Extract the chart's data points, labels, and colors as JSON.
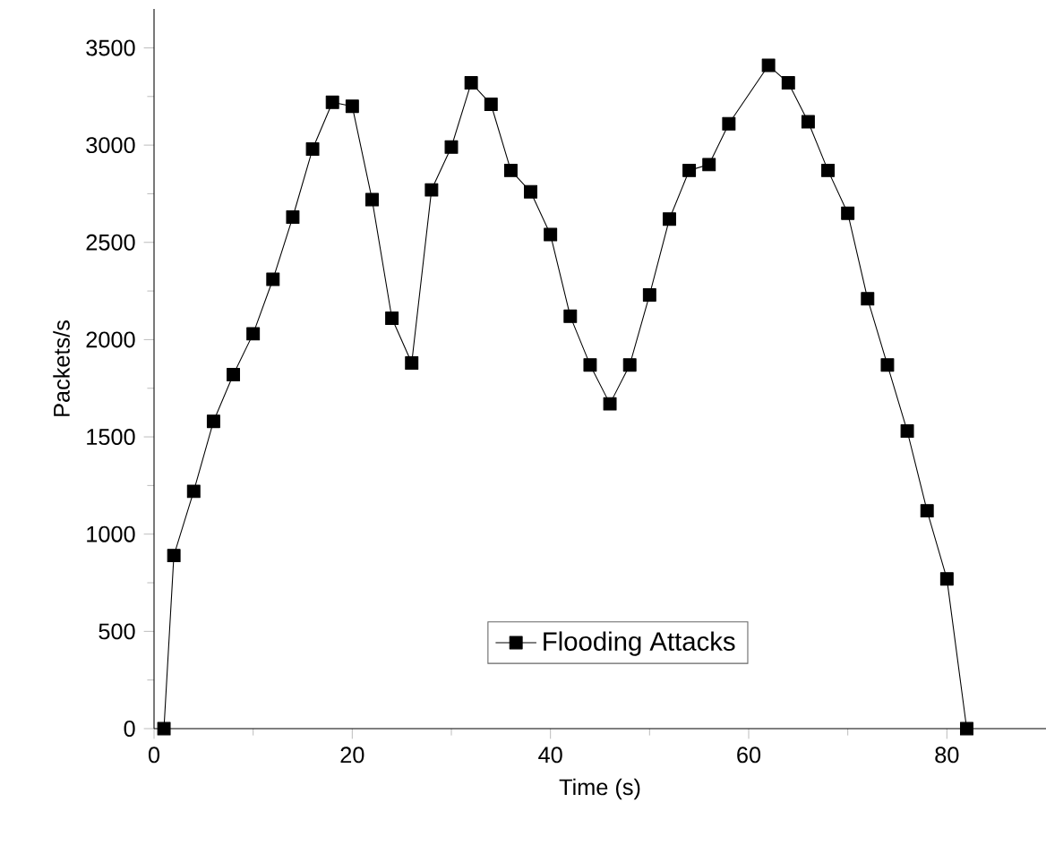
{
  "chart_data": {
    "type": "line",
    "xlabel": "Time (s)",
    "ylabel": "Packets/s",
    "x": [
      1,
      2,
      4,
      6,
      8,
      10,
      12,
      14,
      16,
      18,
      20,
      22,
      24,
      26,
      28,
      30,
      32,
      34,
      36,
      38,
      40,
      42,
      44,
      46,
      48,
      50,
      52,
      54,
      56,
      58,
      62,
      64,
      66,
      68,
      70,
      72,
      74,
      76,
      78,
      80,
      82
    ],
    "series": [
      {
        "name": "Flooding Attacks",
        "color": "#000000",
        "values": [
          0,
          890,
          1220,
          1580,
          1820,
          2030,
          2310,
          2630,
          2980,
          3220,
          3200,
          2720,
          2110,
          1880,
          2770,
          2990,
          3320,
          3210,
          2870,
          2760,
          2540,
          2120,
          1870,
          1670,
          1870,
          2230,
          2620,
          2870,
          2900,
          3110,
          3410,
          3320,
          3120,
          2870,
          2650,
          2210,
          1870,
          1530,
          1120,
          770,
          0
        ]
      }
    ],
    "marker": "square",
    "line_style": "solid",
    "legend": "bottom",
    "grid": false,
    "xlim": [
      0,
      90
    ],
    "ylim": [
      0,
      3700
    ],
    "xticks": [
      0,
      20,
      40,
      60,
      80
    ],
    "yticks": [
      0,
      500,
      1000,
      1500,
      2000,
      2500,
      3000,
      3500
    ]
  }
}
